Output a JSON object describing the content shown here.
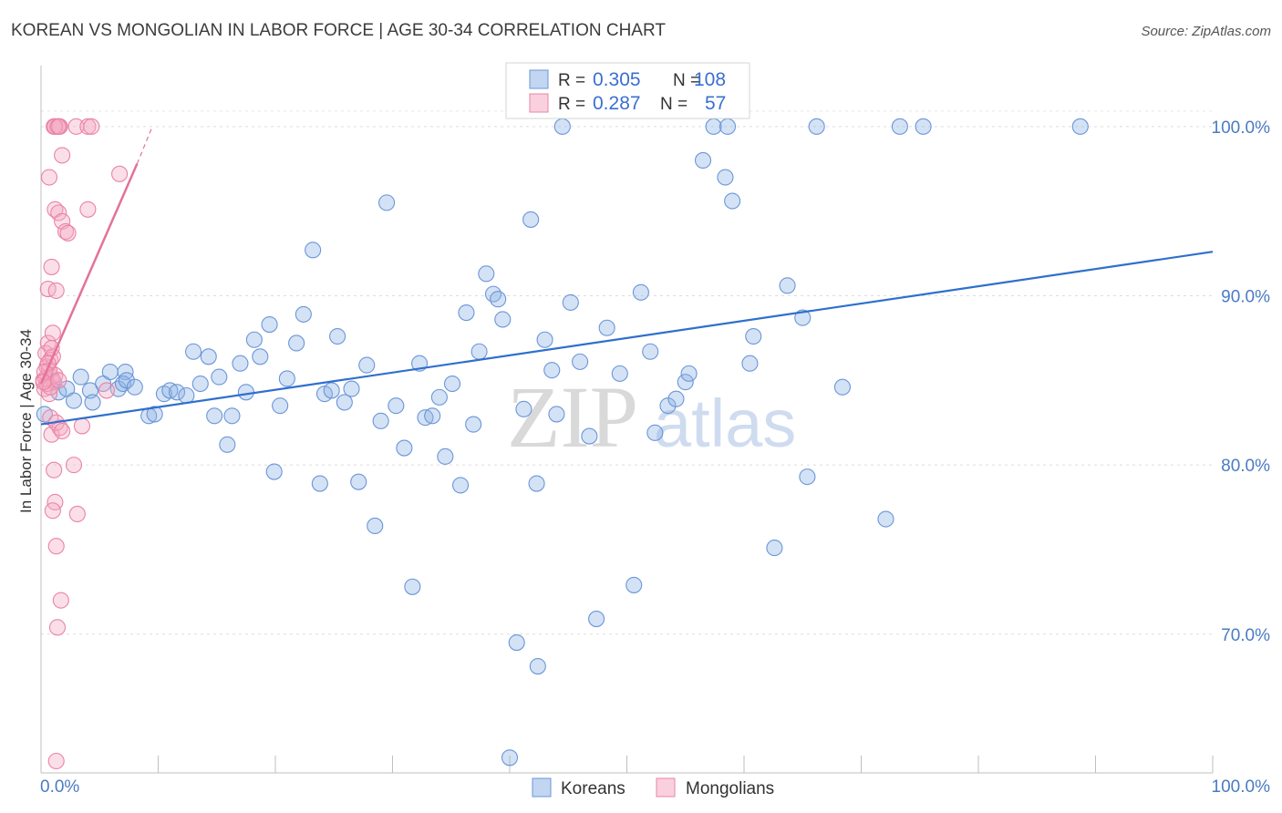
{
  "chart_data": {
    "type": "scatter",
    "title": "KOREAN VS MONGOLIAN IN LABOR FORCE | AGE 30-34 CORRELATION CHART",
    "source": "Source: ZipAtlas.com",
    "xlabel": "",
    "ylabel": "In Labor Force | Age 30-34",
    "xlim": [
      0,
      100
    ],
    "ylim": [
      61.8,
      103.6
    ],
    "x_tick_labels": [
      "0.0%",
      "100.0%"
    ],
    "y_ticks": [
      70,
      80,
      90,
      100
    ],
    "y_tick_labels": [
      "70.0%",
      "80.0%",
      "90.0%",
      "100.0%"
    ],
    "grid": true,
    "legend_position": "top-center",
    "bottom_legend_position": "bottom-center",
    "watermark": {
      "zip": "ZIP",
      "atlas": "atlas"
    },
    "legend_entries": [
      {
        "r_label": "R =",
        "r_value": "0.305",
        "n_label": "N =",
        "n_value": "108"
      },
      {
        "r_label": "R =",
        "r_value": "0.287",
        "n_label": "N =",
        "n_value": "57"
      }
    ],
    "series": [
      {
        "name": "Koreans",
        "color": "#8fb3e6",
        "edge_color": "#6a96d8",
        "line_color": "#2f6fcd",
        "trend": {
          "x": [
            0,
            100
          ],
          "y": [
            82.4,
            92.6
          ]
        },
        "points": [
          [
            0.3,
            83.0
          ],
          [
            1.0,
            85.0
          ],
          [
            1.5,
            84.3
          ],
          [
            2.2,
            84.5
          ],
          [
            2.8,
            83.8
          ],
          [
            3.4,
            85.2
          ],
          [
            4.2,
            84.4
          ],
          [
            4.4,
            83.7
          ],
          [
            5.3,
            84.8
          ],
          [
            5.9,
            85.5
          ],
          [
            6.6,
            84.5
          ],
          [
            7.2,
            85.5
          ],
          [
            7.0,
            84.8
          ],
          [
            7.3,
            85.0
          ],
          [
            8.0,
            84.6
          ],
          [
            9.2,
            82.9
          ],
          [
            9.7,
            83.0
          ],
          [
            10.5,
            84.2
          ],
          [
            11.0,
            84.4
          ],
          [
            11.6,
            84.3
          ],
          [
            12.4,
            84.1
          ],
          [
            13.0,
            86.7
          ],
          [
            13.6,
            84.8
          ],
          [
            14.3,
            86.4
          ],
          [
            14.8,
            82.9
          ],
          [
            15.2,
            85.2
          ],
          [
            15.9,
            81.2
          ],
          [
            16.3,
            82.9
          ],
          [
            17.0,
            86.0
          ],
          [
            17.5,
            84.3
          ],
          [
            18.2,
            87.4
          ],
          [
            18.7,
            86.4
          ],
          [
            19.5,
            88.3
          ],
          [
            19.9,
            79.6
          ],
          [
            20.4,
            83.5
          ],
          [
            21.0,
            85.1
          ],
          [
            21.8,
            87.2
          ],
          [
            22.4,
            88.9
          ],
          [
            23.2,
            92.7
          ],
          [
            23.8,
            78.9
          ],
          [
            24.2,
            84.2
          ],
          [
            24.8,
            84.4
          ],
          [
            25.3,
            87.6
          ],
          [
            25.9,
            83.7
          ],
          [
            26.5,
            84.5
          ],
          [
            27.1,
            79.0
          ],
          [
            27.8,
            85.9
          ],
          [
            28.5,
            76.4
          ],
          [
            29.0,
            82.6
          ],
          [
            29.5,
            95.5
          ],
          [
            30.3,
            83.5
          ],
          [
            31.0,
            81.0
          ],
          [
            31.7,
            72.8
          ],
          [
            32.3,
            86.0
          ],
          [
            32.8,
            82.8
          ],
          [
            33.4,
            82.9
          ],
          [
            34.0,
            84.0
          ],
          [
            34.5,
            80.5
          ],
          [
            35.1,
            84.8
          ],
          [
            35.8,
            78.8
          ],
          [
            36.3,
            89.0
          ],
          [
            36.9,
            82.4
          ],
          [
            37.4,
            86.7
          ],
          [
            38.0,
            91.3
          ],
          [
            38.6,
            90.1
          ],
          [
            39.0,
            89.8
          ],
          [
            39.4,
            88.6
          ],
          [
            40.0,
            62.7
          ],
          [
            40.6,
            69.5
          ],
          [
            41.2,
            83.3
          ],
          [
            41.8,
            94.5
          ],
          [
            42.4,
            68.1
          ],
          [
            42.3,
            78.9
          ],
          [
            43.0,
            87.4
          ],
          [
            43.6,
            85.6
          ],
          [
            44.0,
            83.0
          ],
          [
            44.5,
            100.0
          ],
          [
            45.2,
            89.6
          ],
          [
            46.0,
            86.1
          ],
          [
            46.8,
            81.7
          ],
          [
            47.4,
            70.9
          ],
          [
            48.3,
            88.1
          ],
          [
            49.4,
            85.4
          ],
          [
            50.6,
            72.9
          ],
          [
            51.2,
            90.2
          ],
          [
            52.0,
            86.7
          ],
          [
            52.4,
            81.9
          ],
          [
            53.5,
            83.5
          ],
          [
            54.2,
            83.9
          ],
          [
            55.0,
            84.9
          ],
          [
            55.3,
            85.4
          ],
          [
            56.5,
            98.0
          ],
          [
            57.4,
            100.0
          ],
          [
            58.4,
            97.0
          ],
          [
            59.0,
            95.6
          ],
          [
            60.5,
            86.0
          ],
          [
            60.8,
            87.6
          ],
          [
            62.6,
            75.1
          ],
          [
            63.7,
            90.6
          ],
          [
            65.0,
            88.7
          ],
          [
            65.4,
            79.3
          ],
          [
            66.2,
            100.0
          ],
          [
            68.4,
            84.6
          ],
          [
            72.1,
            76.8
          ],
          [
            73.3,
            100.0
          ],
          [
            75.3,
            100.0
          ],
          [
            88.7,
            100.0
          ],
          [
            58.6,
            100.0
          ]
        ]
      },
      {
        "name": "Mongolians",
        "color": "#f5aac3",
        "edge_color": "#ea83a6",
        "line_color": "#e4719b",
        "trend": {
          "x": [
            0,
            8.2
          ],
          "y": [
            84.8,
            97.8
          ]
        },
        "trend_ext": {
          "x": [
            8.2,
            9.5
          ],
          "y": [
            97.8,
            100.0
          ]
        },
        "points": [
          [
            0.2,
            85.0
          ],
          [
            0.3,
            84.5
          ],
          [
            0.4,
            86.6
          ],
          [
            0.5,
            85.8
          ],
          [
            0.6,
            87.2
          ],
          [
            0.7,
            84.2
          ],
          [
            0.8,
            86.2
          ],
          [
            0.9,
            85.2
          ],
          [
            1.0,
            87.8
          ],
          [
            1.1,
            84.9
          ],
          [
            0.6,
            90.4
          ],
          [
            0.9,
            91.7
          ],
          [
            1.3,
            90.3
          ],
          [
            0.7,
            97.0
          ],
          [
            1.2,
            95.1
          ],
          [
            1.5,
            94.9
          ],
          [
            1.8,
            94.4
          ],
          [
            2.1,
            93.8
          ],
          [
            2.3,
            93.7
          ],
          [
            1.1,
            100.0
          ],
          [
            1.4,
            100.0
          ],
          [
            1.6,
            100.0
          ],
          [
            3.0,
            100.0
          ],
          [
            4.0,
            100.0
          ],
          [
            4.3,
            100.0
          ],
          [
            1.8,
            98.3
          ],
          [
            4.0,
            95.1
          ],
          [
            6.7,
            97.2
          ],
          [
            1.2,
            100.0
          ],
          [
            1.5,
            100.0
          ],
          [
            0.8,
            82.8
          ],
          [
            0.9,
            81.8
          ],
          [
            1.6,
            82.2
          ],
          [
            1.3,
            82.5
          ],
          [
            1.8,
            82.0
          ],
          [
            2.8,
            80.0
          ],
          [
            1.1,
            79.7
          ],
          [
            1.2,
            77.8
          ],
          [
            1.0,
            77.3
          ],
          [
            3.1,
            77.1
          ],
          [
            1.3,
            75.2
          ],
          [
            1.7,
            72.0
          ],
          [
            1.4,
            70.4
          ],
          [
            1.3,
            62.5
          ],
          [
            3.5,
            82.3
          ],
          [
            5.6,
            84.4
          ],
          [
            0.5,
            84.8
          ],
          [
            0.4,
            85.1
          ],
          [
            0.7,
            85.6
          ],
          [
            1.0,
            86.4
          ],
          [
            0.8,
            84.6
          ],
          [
            1.2,
            85.3
          ],
          [
            0.6,
            86.0
          ],
          [
            0.3,
            85.5
          ],
          [
            0.9,
            86.9
          ],
          [
            1.5,
            85.0
          ],
          [
            0.2,
            84.9
          ]
        ]
      }
    ]
  }
}
